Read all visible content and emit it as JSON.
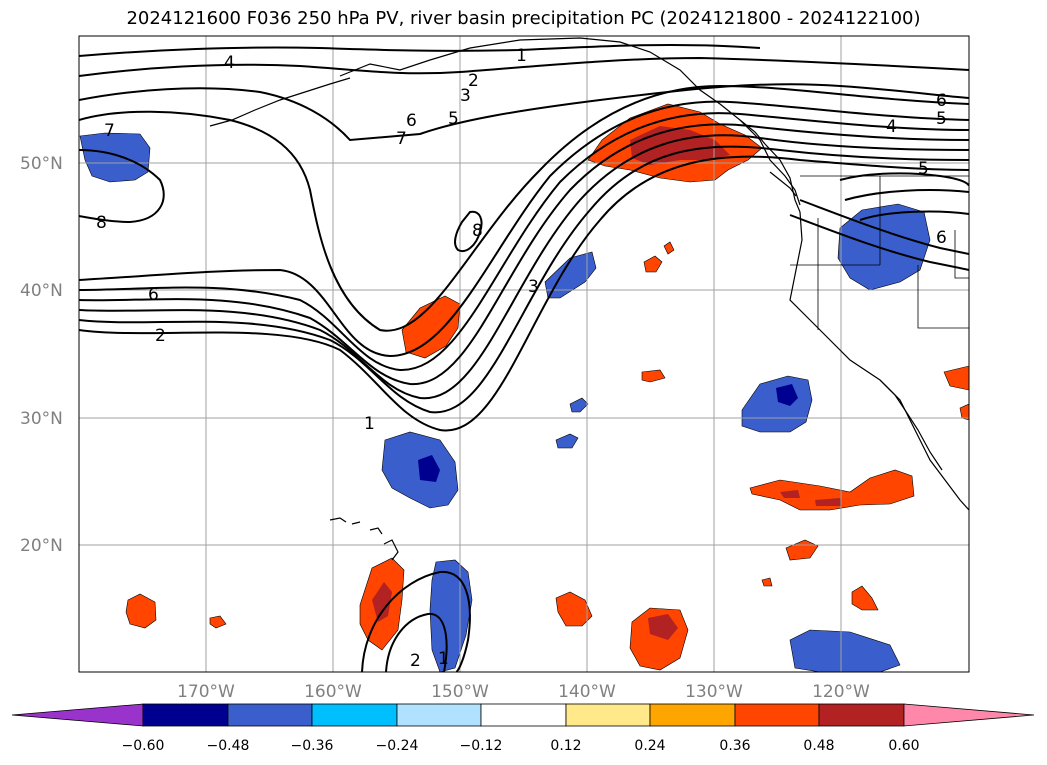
{
  "title": "2024121600 F036 250 hPa PV, river basin precipitation PC (2024121800 - 2024122100)",
  "map": {
    "lat_labels": [
      "50°N",
      "40°N",
      "30°N",
      "20°N"
    ],
    "lon_labels": [
      "170°W",
      "160°W",
      "150°W",
      "140°W",
      "130°W",
      "120°W"
    ],
    "lat_values": [
      50,
      40,
      30,
      20
    ],
    "lon_values": [
      -170,
      -160,
      -150,
      -140,
      -130,
      -120
    ],
    "extent": {
      "lon_min": -180,
      "lon_max": -110,
      "lat_min": 10,
      "lat_max": 60
    },
    "contour_labels": [
      "1",
      "2",
      "3",
      "4",
      "5",
      "6",
      "7",
      "8",
      "4",
      "5",
      "6",
      "7",
      "6",
      "2",
      "1",
      "3",
      "8",
      "6",
      "5",
      "2",
      "1"
    ]
  },
  "colorbar": {
    "ticks": [
      "−0.60",
      "−0.48",
      "−0.36",
      "−0.24",
      "−0.12",
      "0.12",
      "0.24",
      "0.36",
      "0.48",
      "0.60"
    ],
    "colors": [
      "#9933cc",
      "#000090",
      "#3a5fcd",
      "#00bfff",
      "#b0e2ff",
      "#ffffff",
      "#ffe98a",
      "#ffa500",
      "#ff4500",
      "#b22222",
      "#ff88aa"
    ]
  }
}
